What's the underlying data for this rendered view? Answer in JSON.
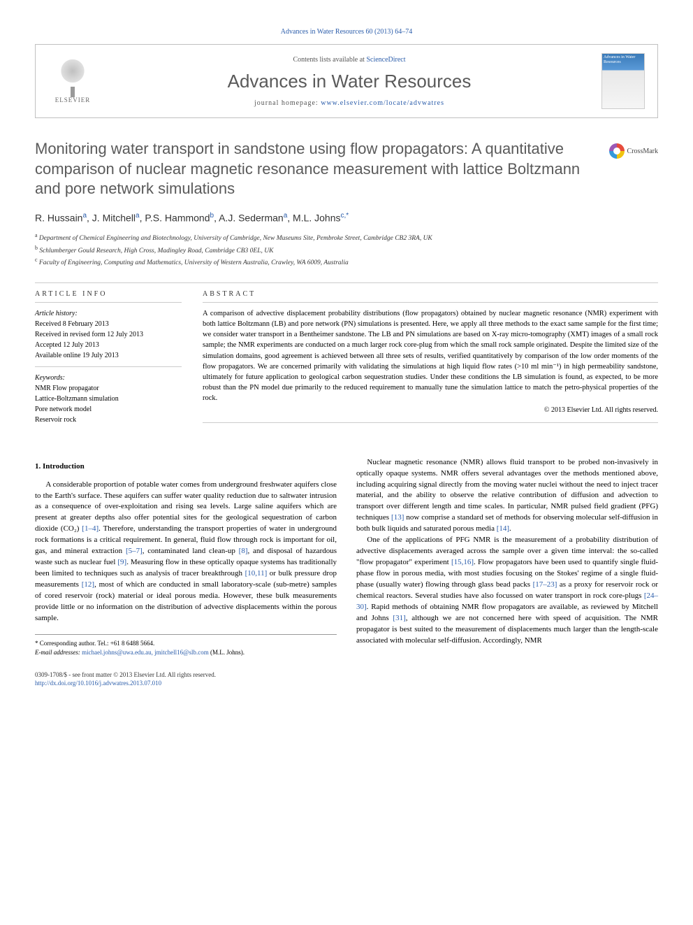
{
  "journal_ref": "Advances in Water Resources 60 (2013) 64–74",
  "header": {
    "contents_prefix": "Contents lists available at ",
    "contents_link": "ScienceDirect",
    "journal_name": "Advances in Water Resources",
    "homepage_prefix": "journal homepage: ",
    "homepage_url": "www.elsevier.com/locate/advwatres",
    "publisher": "ELSEVIER",
    "cover_title": "Advances in Water Resources"
  },
  "title": "Monitoring water transport in sandstone using flow propagators: A quantitative comparison of nuclear magnetic resonance measurement with lattice Boltzmann and pore network simulations",
  "crossmark": "CrossMark",
  "authors_html": "R. Hussain<sup>a</sup>, J. Mitchell<sup>a</sup>, P.S. Hammond<sup>b</sup>, A.J. Sederman<sup>a</sup>, M.L. Johns<sup>c,*</sup>",
  "affiliations": [
    "a Department of Chemical Engineering and Biotechnology, University of Cambridge, New Museums Site, Pembroke Street, Cambridge CB2 3RA, UK",
    "b Schlumberger Gould Research, High Cross, Madingley Road, Cambridge CB3 0EL, UK",
    "c Faculty of Engineering, Computing and Mathematics, University of Western Australia, Crawley, WA 6009, Australia"
  ],
  "article_info": {
    "heading": "ARTICLE INFO",
    "history_label": "Article history:",
    "history": [
      "Received 8 February 2013",
      "Received in revised form 12 July 2013",
      "Accepted 12 July 2013",
      "Available online 19 July 2013"
    ],
    "keywords_label": "Keywords:",
    "keywords": [
      "NMR Flow propagator",
      "Lattice-Boltzmann simulation",
      "Pore network model",
      "Reservoir rock"
    ]
  },
  "abstract": {
    "heading": "ABSTRACT",
    "text": "A comparison of advective displacement probability distributions (flow propagators) obtained by nuclear magnetic resonance (NMR) experiment with both lattice Boltzmann (LB) and pore network (PN) simulations is presented. Here, we apply all three methods to the exact same sample for the first time; we consider water transport in a Bentheimer sandstone. The LB and PN simulations are based on X-ray micro-tomography (XMT) images of a small rock sample; the NMR experiments are conducted on a much larger rock core-plug from which the small rock sample originated. Despite the limited size of the simulation domains, good agreement is achieved between all three sets of results, verified quantitatively by comparison of the low order moments of the flow propagators. We are concerned primarily with validating the simulations at high liquid flow rates (>10 ml min⁻¹) in high permeability sandstone, ultimately for future application to geological carbon sequestration studies. Under these conditions the LB simulation is found, as expected, to be more robust than the PN model due primarily to the reduced requirement to manually tune the simulation lattice to match the petro-physical properties of the rock.",
    "copyright": "© 2013 Elsevier Ltd. All rights reserved."
  },
  "section1": {
    "heading": "1. Introduction",
    "p1": "A considerable proportion of potable water comes from underground freshwater aquifers close to the Earth's surface. These aquifers can suffer water quality reduction due to saltwater intrusion as a consequence of over-exploitation and rising sea levels. Large saline aquifers which are present at greater depths also offer potential sites for the geological sequestration of carbon dioxide (CO₂) [1–4]. Therefore, understanding the transport properties of water in underground rock formations is a critical requirement. In general, fluid flow through rock is important for oil, gas, and mineral extraction [5–7], contaminated land clean-up [8], and disposal of hazardous waste such as nuclear fuel [9]. Measuring flow in these optically opaque systems has traditionally been limited to techniques such as analysis of tracer breakthrough [10,11] or bulk pressure drop measurements [12], most of which are conducted in small laboratory-scale (sub-metre) samples of cored reservoir (rock) material or ideal porous media. However, these bulk measurements provide little or no information on the distribution of advective displacements within the porous sample.",
    "p2": "Nuclear magnetic resonance (NMR) allows fluid transport to be probed non-invasively in optically opaque systems. NMR offers several advantages over the methods mentioned above, including acquiring signal directly from the moving water nuclei without the need to inject tracer material, and the ability to observe the relative contribution of diffusion and advection to transport over different length and time scales. In particular, NMR pulsed field gradient (PFG) techniques [13] now comprise a standard set of methods for observing molecular self-diffusion in both bulk liquids and saturated porous media [14].",
    "p3": "One of the applications of PFG NMR is the measurement of a probability distribution of advective displacements averaged across the sample over a given time interval: the so-called \"flow propagator\" experiment [15,16]. Flow propagators have been used to quantify single fluid-phase flow in porous media, with most studies focusing on the Stokes' regime of a single fluid-phase (usually water) flowing through glass bead packs [17–23] as a proxy for reservoir rock or chemical reactors. Several studies have also focussed on water transport in rock core-plugs [24–30]. Rapid methods of obtaining NMR flow propagators are available, as reviewed by Mitchell and Johns [31], although we are not concerned here with speed of acquisition. The NMR propagator is best suited to the measurement of displacements much larger than the length-scale associated with molecular self-diffusion. Accordingly, NMR"
  },
  "corresponding": {
    "label": "* Corresponding author. Tel.: +61 8 6488 5664.",
    "email_label": "E-mail addresses: ",
    "emails": "michael.johns@uwa.edu.au, jmitchell16@slb.com",
    "name": "(M.L. Johns)."
  },
  "footer": {
    "issn": "0309-1708/$ - see front matter © 2013 Elsevier Ltd. All rights reserved.",
    "doi": "http://dx.doi.org/10.1016/j.advwatres.2013.07.010"
  },
  "colors": {
    "link": "#2a5caa",
    "heading": "#5a5a5a",
    "rule": "#cccccc",
    "text": "#000000"
  }
}
